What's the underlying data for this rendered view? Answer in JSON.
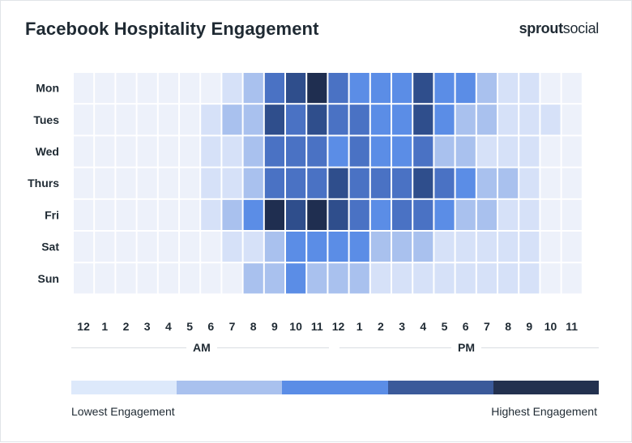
{
  "title": "Facebook Hospitality Engagement",
  "brand": {
    "bold": "sprout",
    "regular": "social"
  },
  "chart_data": {
    "type": "heatmap",
    "title": "Facebook Hospitality Engagement",
    "rows": [
      "Mon",
      "Tues",
      "Wed",
      "Thurs",
      "Fri",
      "Sat",
      "Sun"
    ],
    "columns": [
      "12",
      "1",
      "2",
      "3",
      "4",
      "5",
      "6",
      "7",
      "8",
      "9",
      "10",
      "11",
      "12",
      "1",
      "2",
      "3",
      "4",
      "5",
      "6",
      "7",
      "8",
      "9",
      "10",
      "11"
    ],
    "period_labels": [
      "AM",
      "PM"
    ],
    "levels": [
      [
        0,
        0,
        0,
        0,
        0,
        0,
        0,
        1,
        2,
        4,
        5,
        6,
        4,
        3,
        3,
        3,
        5,
        3,
        3,
        2,
        1,
        1,
        0,
        0
      ],
      [
        0,
        0,
        0,
        0,
        0,
        0,
        1,
        2,
        2,
        5,
        4,
        5,
        4,
        4,
        3,
        3,
        5,
        3,
        2,
        2,
        1,
        1,
        1,
        0
      ],
      [
        0,
        0,
        0,
        0,
        0,
        0,
        1,
        1,
        2,
        4,
        4,
        4,
        3,
        4,
        3,
        3,
        4,
        2,
        2,
        1,
        1,
        1,
        0,
        0
      ],
      [
        0,
        0,
        0,
        0,
        0,
        0,
        1,
        1,
        2,
        4,
        4,
        4,
        5,
        4,
        4,
        4,
        5,
        4,
        3,
        2,
        2,
        1,
        0,
        0
      ],
      [
        0,
        0,
        0,
        0,
        0,
        0,
        1,
        2,
        3,
        6,
        5,
        6,
        5,
        4,
        3,
        4,
        4,
        3,
        2,
        2,
        1,
        1,
        0,
        0
      ],
      [
        0,
        0,
        0,
        0,
        0,
        0,
        0,
        1,
        1,
        2,
        3,
        3,
        3,
        3,
        2,
        2,
        2,
        1,
        1,
        1,
        1,
        1,
        0,
        0
      ],
      [
        0,
        0,
        0,
        0,
        0,
        0,
        0,
        0,
        2,
        2,
        3,
        2,
        2,
        2,
        1,
        1,
        1,
        1,
        1,
        1,
        1,
        1,
        0,
        0
      ]
    ],
    "cell_colors": [
      "#edf1fa",
      "#d6e1f8",
      "#a9c1ee",
      "#5b8de6",
      "#4a72c4",
      "#2f4e8c",
      "#1f2e50"
    ],
    "legend": {
      "colors": [
        "#dde9fb",
        "#a9c1ee",
        "#5b8de6",
        "#3b5a9a",
        "#23314f"
      ],
      "low_label": "Lowest Engagement",
      "high_label": "Highest Engagement"
    }
  }
}
